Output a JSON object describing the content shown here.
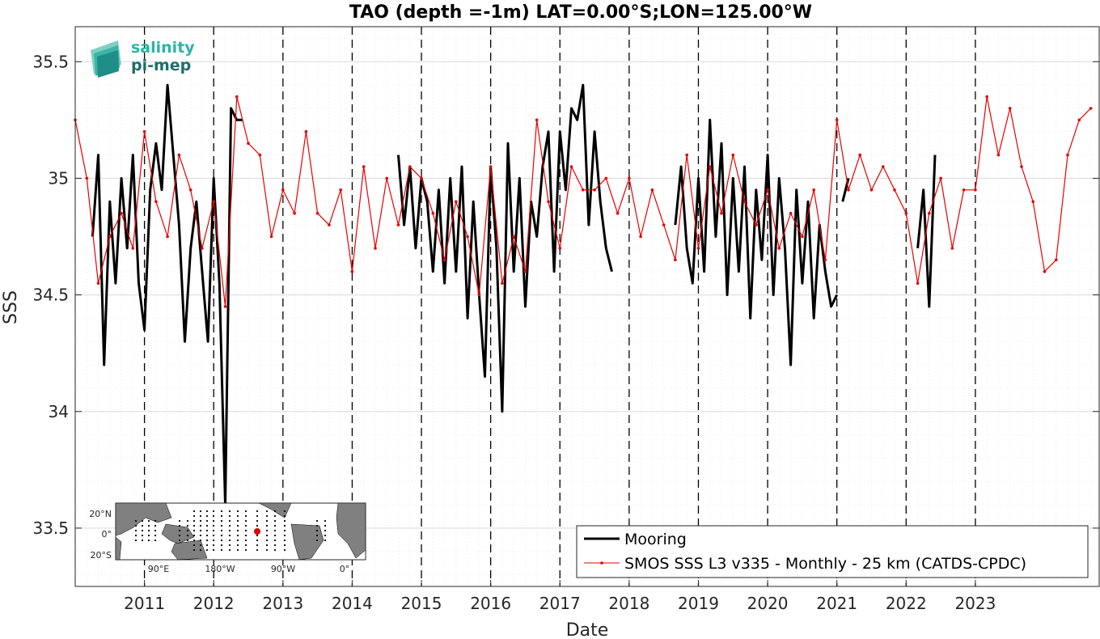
{
  "chart_data": {
    "type": "line",
    "title": "TAO (depth =-1m) LAT=0.00°S;LON=125.00°W",
    "xlabel": "Date",
    "ylabel": "SSS",
    "xlim": [
      "2010-01-01",
      "2024-10-15"
    ],
    "ylim": [
      33.25,
      35.65
    ],
    "yticks": [
      33.5,
      34,
      34.5,
      35,
      35.5
    ],
    "ytick_labels": [
      "33.5",
      "34",
      "34.5",
      "35",
      "35.5"
    ],
    "xticks": [
      "2011-01-01",
      "2012-01-01",
      "2013-01-01",
      "2014-01-01",
      "2015-01-01",
      "2016-01-01",
      "2017-01-01",
      "2018-01-01",
      "2019-01-01",
      "2020-01-01",
      "2021-01-01",
      "2022-01-01",
      "2023-01-01"
    ],
    "xtick_labels": [
      "2011",
      "2012",
      "2013",
      "2014",
      "2015",
      "2016",
      "2017",
      "2018",
      "2019",
      "2020",
      "2021",
      "2022",
      "2023"
    ],
    "grid": true,
    "year_markers": "dashed vertical lines at each year start",
    "legend_position": "bottom-right",
    "series": [
      {
        "name": "Mooring",
        "color": "#000000",
        "style": "thick-line",
        "segments": [
          {
            "x": [
              "2010-04",
              "2010-05",
              "2010-06",
              "2010-07",
              "2010-08",
              "2010-09",
              "2010-10",
              "2010-11",
              "2010-12",
              "2011-01",
              "2011-02",
              "2011-03",
              "2011-04",
              "2011-05",
              "2011-06",
              "2011-07",
              "2011-08",
              "2011-09",
              "2011-10",
              "2011-11",
              "2011-12",
              "2012-01",
              "2012-02",
              "2012-03",
              "2012-04",
              "2012-05",
              "2012-06"
            ],
            "y": [
              34.75,
              35.1,
              34.2,
              34.9,
              34.55,
              35.0,
              34.7,
              35.1,
              34.55,
              34.35,
              34.95,
              35.15,
              34.95,
              35.4,
              35.1,
              34.8,
              34.3,
              34.7,
              34.9,
              34.6,
              34.3,
              35.0,
              34.55,
              33.6,
              35.3,
              35.25,
              35.25
            ]
          },
          {
            "x": [
              "2014-09",
              "2014-10",
              "2014-11",
              "2014-12",
              "2015-01",
              "2015-02",
              "2015-03",
              "2015-04",
              "2015-05",
              "2015-06",
              "2015-07",
              "2015-08",
              "2015-09",
              "2015-10",
              "2015-11",
              "2015-12",
              "2016-01",
              "2016-02",
              "2016-03",
              "2016-04",
              "2016-05",
              "2016-06",
              "2016-07",
              "2016-08",
              "2016-09",
              "2016-10",
              "2016-11",
              "2016-12",
              "2017-01",
              "2017-02",
              "2017-03",
              "2017-04",
              "2017-05",
              "2017-06",
              "2017-07",
              "2017-08",
              "2017-09",
              "2017-10"
            ],
            "y": [
              35.1,
              34.8,
              35.05,
              34.7,
              35.0,
              34.9,
              34.6,
              34.95,
              34.55,
              35.0,
              34.6,
              35.05,
              34.4,
              34.9,
              34.5,
              34.15,
              35.05,
              34.7,
              34.0,
              35.15,
              34.6,
              35.0,
              34.45,
              34.9,
              34.75,
              35.05,
              35.2,
              34.6,
              35.2,
              34.95,
              35.3,
              35.25,
              35.4,
              34.8,
              35.2,
              34.9,
              34.7,
              34.6
            ]
          },
          {
            "x": [
              "2018-09",
              "2018-10",
              "2018-11",
              "2018-12",
              "2019-01",
              "2019-02",
              "2019-03",
              "2019-04",
              "2019-05",
              "2019-06",
              "2019-07",
              "2019-08",
              "2019-09",
              "2019-10",
              "2019-11",
              "2019-12",
              "2020-01",
              "2020-02",
              "2020-03",
              "2020-04",
              "2020-05",
              "2020-06",
              "2020-07",
              "2020-08",
              "2020-09",
              "2020-10",
              "2020-11",
              "2020-12",
              "2021-01"
            ],
            "y": [
              34.8,
              35.05,
              34.7,
              34.55,
              35.0,
              34.6,
              35.25,
              34.75,
              35.15,
              34.5,
              35.0,
              34.6,
              35.05,
              34.4,
              34.95,
              34.65,
              35.1,
              34.5,
              35.0,
              34.7,
              34.2,
              34.95,
              34.55,
              34.9,
              34.4,
              34.8,
              34.6,
              34.45,
              34.5
            ]
          },
          {
            "x": [
              "2021-02",
              "2021-03"
            ],
            "y": [
              34.9,
              35.0
            ]
          },
          {
            "x": [
              "2022-03",
              "2022-04",
              "2022-05",
              "2022-06"
            ],
            "y": [
              34.7,
              34.95,
              34.45,
              35.1
            ]
          }
        ]
      },
      {
        "name": "SMOS SSS L3 v335 - Monthly - 25 km (CATDS-CPDC)",
        "color": "#e60000",
        "style": "thin-line-dots",
        "x": [
          "2010-01",
          "2010-03",
          "2010-05",
          "2010-07",
          "2010-09",
          "2010-11",
          "2011-01",
          "2011-03",
          "2011-05",
          "2011-07",
          "2011-09",
          "2011-11",
          "2012-01",
          "2012-03",
          "2012-05",
          "2012-07",
          "2012-09",
          "2012-11",
          "2013-01",
          "2013-03",
          "2013-05",
          "2013-07",
          "2013-09",
          "2013-11",
          "2014-01",
          "2014-03",
          "2014-05",
          "2014-07",
          "2014-09",
          "2014-11",
          "2015-01",
          "2015-03",
          "2015-05",
          "2015-07",
          "2015-09",
          "2015-11",
          "2016-01",
          "2016-03",
          "2016-05",
          "2016-07",
          "2016-09",
          "2016-11",
          "2017-01",
          "2017-03",
          "2017-05",
          "2017-07",
          "2017-09",
          "2017-11",
          "2018-01",
          "2018-03",
          "2018-05",
          "2018-07",
          "2018-09",
          "2018-11",
          "2019-01",
          "2019-03",
          "2019-05",
          "2019-07",
          "2019-09",
          "2019-11",
          "2020-01",
          "2020-03",
          "2020-05",
          "2020-07",
          "2020-09",
          "2020-11",
          "2021-01",
          "2021-03",
          "2021-05",
          "2021-07",
          "2021-09",
          "2021-11",
          "2022-01",
          "2022-03",
          "2022-05",
          "2022-07",
          "2022-09",
          "2022-11",
          "2023-01",
          "2023-03",
          "2023-05",
          "2023-07",
          "2023-09",
          "2023-11",
          "2024-01",
          "2024-03",
          "2024-05",
          "2024-07",
          "2024-09"
        ],
        "y": [
          35.25,
          35.0,
          34.55,
          34.75,
          34.85,
          34.7,
          35.2,
          34.9,
          34.75,
          35.1,
          34.95,
          34.7,
          34.9,
          34.45,
          35.35,
          35.15,
          35.1,
          34.75,
          34.95,
          34.85,
          35.2,
          34.85,
          34.8,
          34.95,
          34.6,
          35.05,
          34.7,
          35.0,
          34.8,
          35.05,
          35.0,
          34.85,
          34.65,
          34.9,
          34.75,
          34.5,
          35.05,
          34.55,
          34.75,
          34.6,
          35.25,
          34.9,
          34.7,
          35.05,
          34.95,
          34.95,
          35.0,
          34.85,
          35.0,
          34.75,
          34.95,
          34.8,
          34.65,
          35.1,
          34.7,
          35.05,
          34.85,
          35.1,
          34.9,
          34.8,
          34.95,
          34.7,
          34.85,
          34.75,
          34.95,
          34.65,
          35.25,
          34.95,
          35.1,
          34.95,
          35.05,
          34.95,
          34.85,
          34.55,
          34.85,
          35.0,
          34.7,
          34.95,
          34.95,
          35.35,
          35.1,
          35.3,
          35.05,
          34.9,
          34.6,
          34.65,
          35.1,
          35.25,
          35.3
        ]
      }
    ]
  },
  "logo": {
    "line1": "salinity",
    "line2": "pi-mep"
  },
  "inset_map": {
    "lat_labels": [
      "20°N",
      "0°",
      "20°S"
    ],
    "lon_labels": [
      "90°E",
      "180°W",
      "90°W",
      "0°"
    ],
    "marker_color": "#e00000"
  }
}
